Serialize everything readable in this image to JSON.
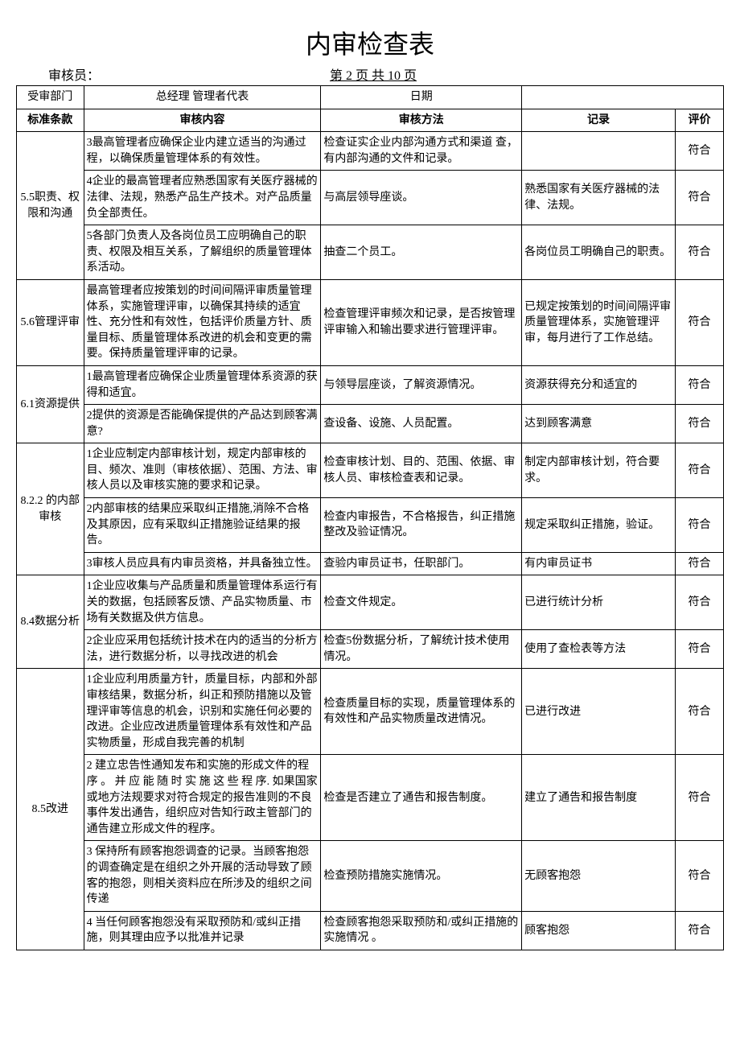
{
  "title": "内审检查表",
  "header": {
    "auditor_label": "审核员：",
    "page_info": "第 2 页  共 10 页"
  },
  "meta_row": {
    "dept_label": "受审部门",
    "dept_value": "总经理  管理者代表",
    "date_label": "日期",
    "date_value": ""
  },
  "columns": {
    "clause": "标准条款",
    "content": "审核内容",
    "method": "审核方法",
    "record": "记录",
    "eval": "评价"
  },
  "rows": [
    {
      "clause": "5.5职责、权限和沟通",
      "clause_rowspan": 3,
      "items": [
        {
          "content": "3最高管理者应确保企业内建立适当的沟通过程，以确保质量管理体系的有效性。",
          "method": "检查证实企业内部沟通方式和渠道 查，有内部沟通的文件和记录。",
          "record": "",
          "eval": "符合"
        },
        {
          "content": "4企业的最高管理者应熟悉国家有关医疗器械的法律、法规，熟悉产品生产技术。对产品质量负全部责任。",
          "method": "与高层领导座谈。",
          "record": "熟悉国家有关医疗器械的法律、法规。",
          "eval": "符合"
        },
        {
          "content": "5各部门负责人及各岗位员工应明确自己的职责、权限及相互关系，了解组织的质量管理体系活动。",
          "method": "抽查二个员工。",
          "record": "各岗位员工明确自己的职责。",
          "eval": "符合"
        }
      ]
    },
    {
      "clause": "5.6管理评审",
      "clause_rowspan": 1,
      "items": [
        {
          "content": "最高管理者应按策划的时间间隔评审质量管理体系，实施管理评审，以确保其持续的适宜性、充分性和有效性，包括评价质量方针、质量目标、质量管理体系改进的机会和变更的需要。保持质量管理评审的记录。",
          "method": "检查管理评审频次和记录，是否按管理评审输入和输出要求进行管理评审。",
          "record": "已规定按策划的时间间隔评审质量管理体系，实施管理评审，每月进行了工作总结。",
          "eval": "符合"
        }
      ]
    },
    {
      "clause": "6.1资源提供",
      "clause_rowspan": 2,
      "items": [
        {
          "content": "1最高管理者应确保企业质量管理体系资源的获得和适宜。",
          "method": "与领导层座谈，了解资源情况。",
          "record": "资源获得充分和适宜的",
          "eval": "符合"
        },
        {
          "content": "2提供的资源是否能确保提供的产品达到顾客满意?",
          "method": "查设备、设施、人员配置。",
          "record": "达到顾客满意",
          "eval": "符合"
        }
      ]
    },
    {
      "clause": "8.2.2  的内部审核",
      "clause_rowspan": 3,
      "items": [
        {
          "content": "1企业应制定内部审核计划，规定内部审核的目、频次、准则（审核依据）、范围、方法、审核人员以及审核实施的要求和记录。",
          "method": "检查审核计划、目的、范围、依据、审核人员、审核检查表和记录。",
          "record": "制定内部审核计划，符合要求。",
          "eval": "符合"
        },
        {
          "content": "2内部审核的结果应采取纠正措施,消除不合格及其原因，应有采取纠正措施验证结果的报告。",
          "method": "检查内审报告，不合格报告，纠正措施整改及验证情况。",
          "record": "规定采取纠正措施，验证。",
          "eval": "符合"
        },
        {
          "content": "3审核人员应具有内审员资格，并具备独立性。",
          "method": "查验内审员证书，任职部门。",
          "record": "有内审员证书",
          "eval": "符合"
        }
      ]
    },
    {
      "clause": "8.4数据分析",
      "clause_rowspan": 2,
      "items": [
        {
          "content": "1企业应收集与产品质量和质量管理体系运行有关的数据，包括顾客反馈、产品实物质量、市场有关数据及供方信息。",
          "method": "检查文件规定。",
          "record": "已进行统计分析",
          "eval": "符合"
        },
        {
          "content": "2企业应采用包括统计技术在内的适当的分析方法，进行数据分析，以寻找改进的机会",
          "method": "检查5份数据分析，了解统计技术使用情况。",
          "record": "使用了查检表等方法",
          "eval": "符合"
        }
      ]
    },
    {
      "clause": "8.5改进",
      "clause_rowspan": 4,
      "items": [
        {
          "content": "1企业应利用质量方针，质量目标，内部和外部审核结果，数据分析，纠正和预防措施以及管理评审等信息的机会，识别和实施任何必要的改进。企业应改进质量管理体系有效性和产品实物质量，形成自我完善的机制",
          "method": "检查质量目标的实现，质量管理体系的有效性和产品实物质量改进情况。",
          "record": "已进行改进",
          "eval": "符合"
        },
        {
          "content": "2  建立忠告性通知发布和实施的形成文件的程序 。 并 应  能 随 时 实 施 这  些 程 序.\n如果国家或地方法规要求对符合规定的报告准则的不良事件发出通告，组织应对告知行政主管部门的通告建立形成文件的程序。",
          "method": "检查是否建立了通告和报告制度。",
          "record": "建立了通告和报告制度",
          "eval": "符合"
        },
        {
          "content": "3  保持所有顾客抱怨调查的记录。当顾客抱怨的调查确定是在组织之外开展的活动导致了顾客的抱怨，则相关资料应在所涉及的组织之间传递",
          "method": "检查预防措施实施情况。",
          "record": "无顾客抱怨",
          "eval": "符合"
        },
        {
          "content": "4  当任何顾客抱怨没有采取预防和/或纠正措施，则其理由应予以批准并记录",
          "method": "检查顾客抱怨采取预防和/或纠正措施的实施情况 。",
          "record": "顾客抱怨",
          "eval": "符合"
        }
      ]
    }
  ]
}
